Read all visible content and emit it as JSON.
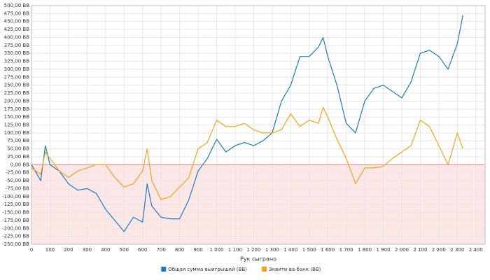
{
  "chart_data": {
    "type": "line",
    "xlabel": "Рук сыграно",
    "x": [
      0,
      50,
      75,
      100,
      150,
      200,
      250,
      300,
      350,
      400,
      450,
      500,
      550,
      600,
      625,
      650,
      700,
      750,
      800,
      850,
      900,
      950,
      1000,
      1050,
      1100,
      1150,
      1200,
      1250,
      1300,
      1350,
      1400,
      1450,
      1500,
      1550,
      1575,
      1600,
      1650,
      1700,
      1750,
      1800,
      1850,
      1900,
      1950,
      2000,
      2050,
      2100,
      2150,
      2200,
      2250,
      2300,
      2330
    ],
    "series": [
      {
        "name": "Общая сумма выигрышей (BB)",
        "color": "#1a7bbf",
        "values": [
          0,
          -50,
          60,
          0,
          -20,
          -60,
          -80,
          -75,
          -90,
          -140,
          -175,
          -210,
          -165,
          -180,
          -60,
          -130,
          -165,
          -170,
          -170,
          -110,
          -20,
          20,
          80,
          40,
          60,
          70,
          60,
          75,
          100,
          200,
          250,
          340,
          340,
          370,
          400,
          340,
          250,
          130,
          100,
          200,
          240,
          250,
          230,
          210,
          260,
          350,
          360,
          340,
          300,
          380,
          470
        ]
      },
      {
        "name": "Эквити ва-банк (BB)",
        "color": "#f5a21b",
        "values": [
          -10,
          -30,
          40,
          20,
          -20,
          -40,
          -20,
          -10,
          0,
          0,
          -40,
          -70,
          -60,
          -20,
          50,
          -50,
          -110,
          -100,
          -70,
          -40,
          50,
          70,
          140,
          120,
          120,
          130,
          110,
          100,
          100,
          110,
          160,
          120,
          140,
          130,
          180,
          150,
          80,
          20,
          -60,
          -10,
          -10,
          -5,
          20,
          40,
          60,
          140,
          120,
          60,
          0,
          100,
          50
        ]
      }
    ],
    "xlim": [
      0,
      2450
    ],
    "xticks": [
      0,
      100,
      200,
      300,
      400,
      500,
      600,
      700,
      800,
      900,
      {
        "value": 1000,
        "label": "1 000"
      },
      {
        "value": 1100,
        "label": "1 100"
      },
      {
        "value": 1200,
        "label": "1 200"
      },
      {
        "value": 1300,
        "label": "1 300"
      },
      {
        "value": 1400,
        "label": "1 400"
      },
      {
        "value": 1500,
        "label": "1 500"
      },
      {
        "value": 1600,
        "label": "1 600"
      },
      {
        "value": 1700,
        "label": "1 700"
      },
      {
        "value": 1800,
        "label": "1 800"
      },
      {
        "value": 1900,
        "label": "1 900"
      },
      {
        "value": 2000,
        "label": "2 000"
      },
      {
        "value": 2100,
        "label": "2 100"
      },
      {
        "value": 2200,
        "label": "2 200"
      },
      {
        "value": 2300,
        "label": "2 300"
      },
      {
        "value": 2400,
        "label": "2 400"
      }
    ],
    "ylim": [
      -250,
      500
    ],
    "yticks": [
      {
        "value": -250,
        "label": "-250,00 BB"
      },
      {
        "value": -225,
        "label": "-225,00 BB"
      },
      {
        "value": -200,
        "label": "-200,00 BB"
      },
      {
        "value": -175,
        "label": "-175,00 BB"
      },
      {
        "value": -150,
        "label": "-150,00 BB"
      },
      {
        "value": -125,
        "label": "-125,00 BB"
      },
      {
        "value": -100,
        "label": "-100,00 BB"
      },
      {
        "value": -75,
        "label": "-75,00 BB"
      },
      {
        "value": -50,
        "label": "-50,00 BB"
      },
      {
        "value": -25,
        "label": "-25,00 BB"
      },
      {
        "value": 0,
        "label": "0,00 BB"
      },
      {
        "value": 25,
        "label": "25,00 BB"
      },
      {
        "value": 50,
        "label": "50,00 BB"
      },
      {
        "value": 75,
        "label": "75,00 BB"
      },
      {
        "value": 100,
        "label": "100,00 BB"
      },
      {
        "value": 125,
        "label": "125,00 BB"
      },
      {
        "value": 150,
        "label": "150,00 BB"
      },
      {
        "value": 175,
        "label": "175,00 BB"
      },
      {
        "value": 200,
        "label": "200,00 BB"
      },
      {
        "value": 225,
        "label": "225,00 BB"
      },
      {
        "value": 250,
        "label": "250,00 BB"
      },
      {
        "value": 275,
        "label": "275,00 BB"
      },
      {
        "value": 300,
        "label": "300,00 BB"
      },
      {
        "value": 325,
        "label": "325,00 BB"
      },
      {
        "value": 350,
        "label": "350,00 BB"
      },
      {
        "value": 375,
        "label": "375,00 BB"
      },
      {
        "value": 400,
        "label": "400,00 BB"
      },
      {
        "value": 425,
        "label": "425,00 BB"
      },
      {
        "value": 450,
        "label": "450,00 BB"
      },
      {
        "value": 475,
        "label": "475,00 BB"
      },
      {
        "value": 500,
        "label": "500,00 BB"
      }
    ],
    "grid": true,
    "legend": "bottom",
    "negative_fill": "#fde6e6"
  }
}
